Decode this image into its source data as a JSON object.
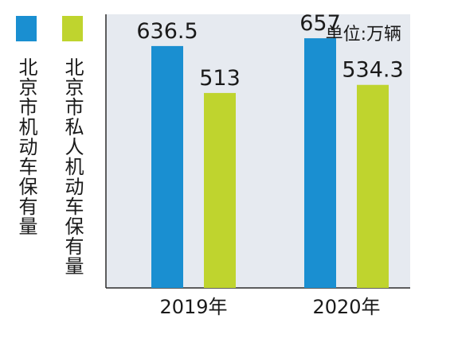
{
  "chart_data": {
    "type": "bar",
    "categories": [
      "2019年",
      "2020年"
    ],
    "series": [
      {
        "name": "北京市机动车保有量",
        "values": [
          636.5,
          657
        ],
        "labels": [
          "636.5",
          "657"
        ],
        "color": "#1a8fd1"
      },
      {
        "name": "北京市私人机动车保有量",
        "values": [
          513,
          534.3
        ],
        "labels": [
          "513",
          "534.3"
        ],
        "color": "#bfd42e"
      }
    ],
    "unit_text": "单位:万辆",
    "ylim": [
      0,
      720
    ],
    "grid": false,
    "legend_position": "left",
    "panel_color": "#e6eaf0"
  }
}
